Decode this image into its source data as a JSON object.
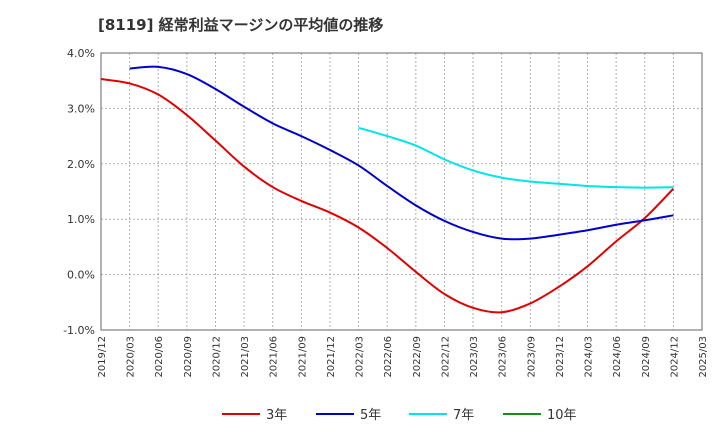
{
  "chart_data": {
    "type": "line",
    "title": "[8119]  経常利益マージンの平均値の推移",
    "xlabel": "",
    "ylabel": "",
    "ylim": [
      -1.0,
      4.0
    ],
    "yticks": [
      "-1.0%",
      "0.0%",
      "1.0%",
      "2.0%",
      "3.0%",
      "4.0%"
    ],
    "yticks_values": [
      -1.0,
      0.0,
      1.0,
      2.0,
      3.0,
      4.0
    ],
    "x_categories": [
      "2019/12",
      "2020/03",
      "2020/06",
      "2020/09",
      "2020/12",
      "2021/03",
      "2021/06",
      "2021/09",
      "2021/12",
      "2022/03",
      "2022/06",
      "2022/09",
      "2022/12",
      "2023/03",
      "2023/06",
      "2023/09",
      "2023/12",
      "2024/03",
      "2024/06",
      "2024/09",
      "2024/12",
      "2025/03"
    ],
    "grid": true,
    "legend_position": "bottom",
    "series": [
      {
        "name": "3年",
        "color": "#e00000",
        "values": [
          3.53,
          3.45,
          3.25,
          2.88,
          2.42,
          1.95,
          1.58,
          1.33,
          1.12,
          0.85,
          0.48,
          0.05,
          -0.35,
          -0.6,
          -0.68,
          -0.52,
          -0.22,
          0.15,
          0.6,
          1.02,
          1.55,
          null
        ]
      },
      {
        "name": "5年",
        "color": "#0000cc",
        "values": [
          null,
          3.72,
          3.75,
          3.62,
          3.35,
          3.03,
          2.73,
          2.5,
          2.25,
          1.97,
          1.6,
          1.25,
          0.97,
          0.77,
          0.65,
          0.65,
          0.72,
          0.8,
          0.9,
          0.98,
          1.07,
          null
        ]
      },
      {
        "name": "7年",
        "color": "#00e5e5",
        "values": [
          null,
          null,
          null,
          null,
          null,
          null,
          null,
          null,
          null,
          2.65,
          2.5,
          2.33,
          2.08,
          1.88,
          1.75,
          1.68,
          1.64,
          1.6,
          1.58,
          1.57,
          1.58,
          null
        ]
      },
      {
        "name": "10年",
        "color": "#1a8a1a",
        "values": [
          null,
          null,
          null,
          null,
          null,
          null,
          null,
          null,
          null,
          null,
          null,
          null,
          null,
          null,
          null,
          null,
          null,
          null,
          null,
          null,
          null,
          null
        ]
      }
    ]
  }
}
